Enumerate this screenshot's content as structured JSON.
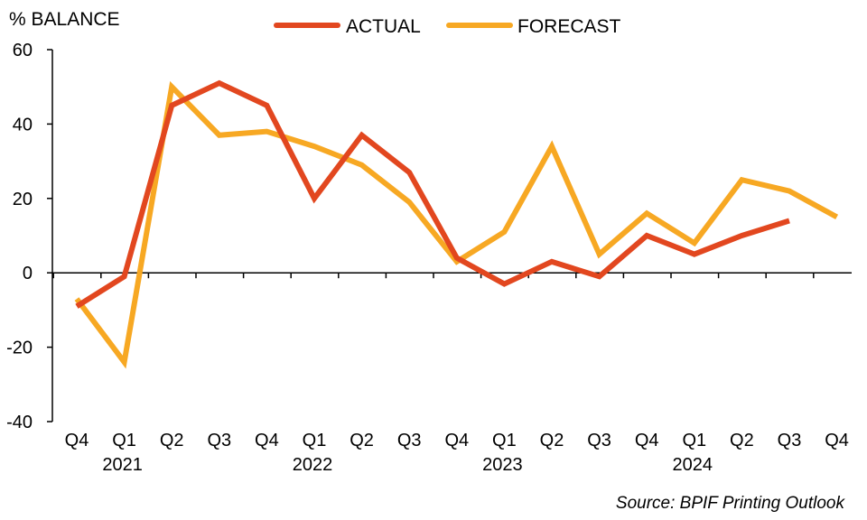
{
  "chart_data": {
    "type": "line",
    "ylabel": "% BALANCE",
    "ylim": [
      -40,
      60
    ],
    "yticks": [
      -40,
      -20,
      0,
      20,
      40,
      60
    ],
    "categories": [
      "Q4",
      "Q1",
      "Q2",
      "Q3",
      "Q4",
      "Q1",
      "Q2",
      "Q3",
      "Q4",
      "Q1",
      "Q2",
      "Q3",
      "Q4",
      "Q1",
      "Q2",
      "Q3",
      "Q4"
    ],
    "year_labels": [
      {
        "label": "2021",
        "index": 1
      },
      {
        "label": "2022",
        "index": 5
      },
      {
        "label": "2023",
        "index": 9
      },
      {
        "label": "2024",
        "index": 13
      }
    ],
    "series": [
      {
        "name": "ACTUAL",
        "color": "#E2471F",
        "values": [
          -9,
          -1,
          45,
          51,
          45,
          20,
          37,
          27,
          4,
          -3,
          3,
          -1,
          10,
          5,
          10,
          14,
          null
        ]
      },
      {
        "name": "FORECAST",
        "color": "#F7A823",
        "values": [
          -7,
          -24,
          50,
          37,
          38,
          34,
          29,
          19,
          3,
          11,
          34,
          5,
          16,
          8,
          25,
          22,
          15
        ]
      }
    ],
    "legend_position": "top",
    "grid": false,
    "source": "Source: BPIF Printing Outlook"
  }
}
